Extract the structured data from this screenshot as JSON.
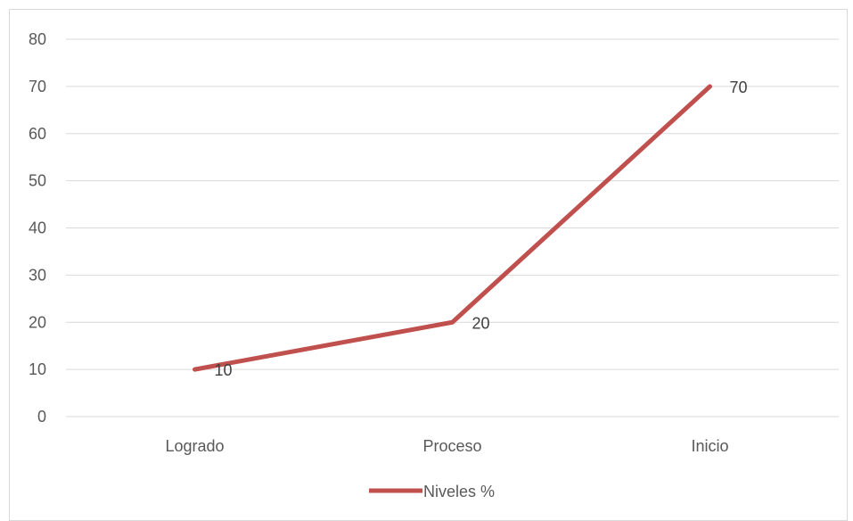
{
  "chart_data": {
    "type": "line",
    "categories": [
      "Logrado",
      "Proceso",
      "Inicio"
    ],
    "series": [
      {
        "name": "Niveles  %",
        "values": [
          10,
          20,
          70
        ],
        "color": "#c0504d"
      }
    ],
    "data_labels": [
      "10",
      "20",
      "70"
    ],
    "ylim": [
      0,
      80
    ],
    "yticks": [
      0,
      10,
      20,
      30,
      40,
      50,
      60,
      70,
      80
    ],
    "grid": true,
    "legend_position": "bottom",
    "gridline_color": "#d9d9d9"
  }
}
